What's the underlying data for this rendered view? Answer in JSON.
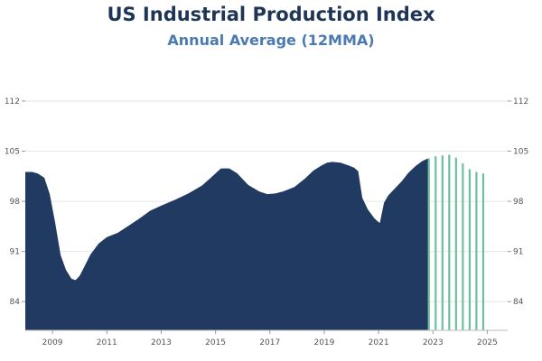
{
  "title": "US Industrial Production Index",
  "subtitle": "Annual Average (12MMA)",
  "colors": {
    "area": "#213a62",
    "forecast": "#6cc0a0",
    "title": "#1f3558",
    "subtitle": "#4a7ab0",
    "grid": "#e6e6e6"
  },
  "chart_data": {
    "type": "area",
    "title": "US Industrial Production Index",
    "subtitle": "Annual Average (12MMA)",
    "xlabel": "",
    "ylabel": "",
    "xlim": [
      2008.0,
      2025.75
    ],
    "ylim": [
      80,
      113
    ],
    "grid": true,
    "y_ticks": [
      84,
      91,
      98,
      105,
      112
    ],
    "x_ticks": [
      2009,
      2011,
      2013,
      2015,
      2017,
      2019,
      2021,
      2023,
      2025
    ],
    "x_tick_labels": [
      "2009",
      "2011",
      "2013",
      "2015",
      "2017",
      "2019",
      "2021",
      "2023",
      "2025"
    ],
    "series": [
      {
        "kind": "area",
        "x": [
          2008.0,
          2008.25,
          2008.45,
          2008.7,
          2008.9,
          2009.1,
          2009.3,
          2009.5,
          2009.7,
          2009.85,
          2010.0,
          2010.15,
          2010.4,
          2010.7,
          2011.0,
          2011.4,
          2011.8,
          2012.2,
          2012.6,
          2013.0,
          2013.5,
          2014.0,
          2014.5,
          2014.8,
          2015.0,
          2015.2,
          2015.5,
          2015.8,
          2016.2,
          2016.6,
          2016.9,
          2017.2,
          2017.5,
          2017.9,
          2018.3,
          2018.6,
          2018.9,
          2019.1,
          2019.3,
          2019.6,
          2019.9,
          2020.1,
          2020.25,
          2020.4,
          2020.6,
          2020.85,
          2021.0,
          2021.05,
          2021.1,
          2021.2,
          2021.35,
          2021.6,
          2021.85,
          2022.1,
          2022.35,
          2022.6,
          2022.82
        ],
        "values": [
          102.1,
          102.1,
          101.9,
          101.3,
          99.0,
          95.0,
          90.5,
          88.4,
          87.2,
          87.0,
          87.6,
          88.7,
          90.6,
          92.1,
          93.0,
          93.6,
          94.6,
          95.6,
          96.7,
          97.4,
          98.2,
          99.1,
          100.2,
          101.2,
          101.9,
          102.6,
          102.6,
          101.9,
          100.3,
          99.4,
          99.0,
          99.1,
          99.4,
          100.0,
          101.2,
          102.3,
          103.0,
          103.4,
          103.5,
          103.4,
          103.0,
          102.7,
          102.2,
          98.5,
          96.9,
          95.6,
          95.1,
          95.0,
          96.0,
          97.8,
          98.8,
          99.8,
          100.8,
          102.0,
          102.9,
          103.6,
          104.0
        ]
      },
      {
        "kind": "forecast-bars",
        "x": [
          2022.85,
          2023.1,
          2023.35,
          2023.6,
          2023.85,
          2024.1,
          2024.35,
          2024.6,
          2024.85
        ],
        "values": [
          104.0,
          104.3,
          104.4,
          104.5,
          104.1,
          103.3,
          102.5,
          102.1,
          101.9
        ]
      }
    ]
  }
}
